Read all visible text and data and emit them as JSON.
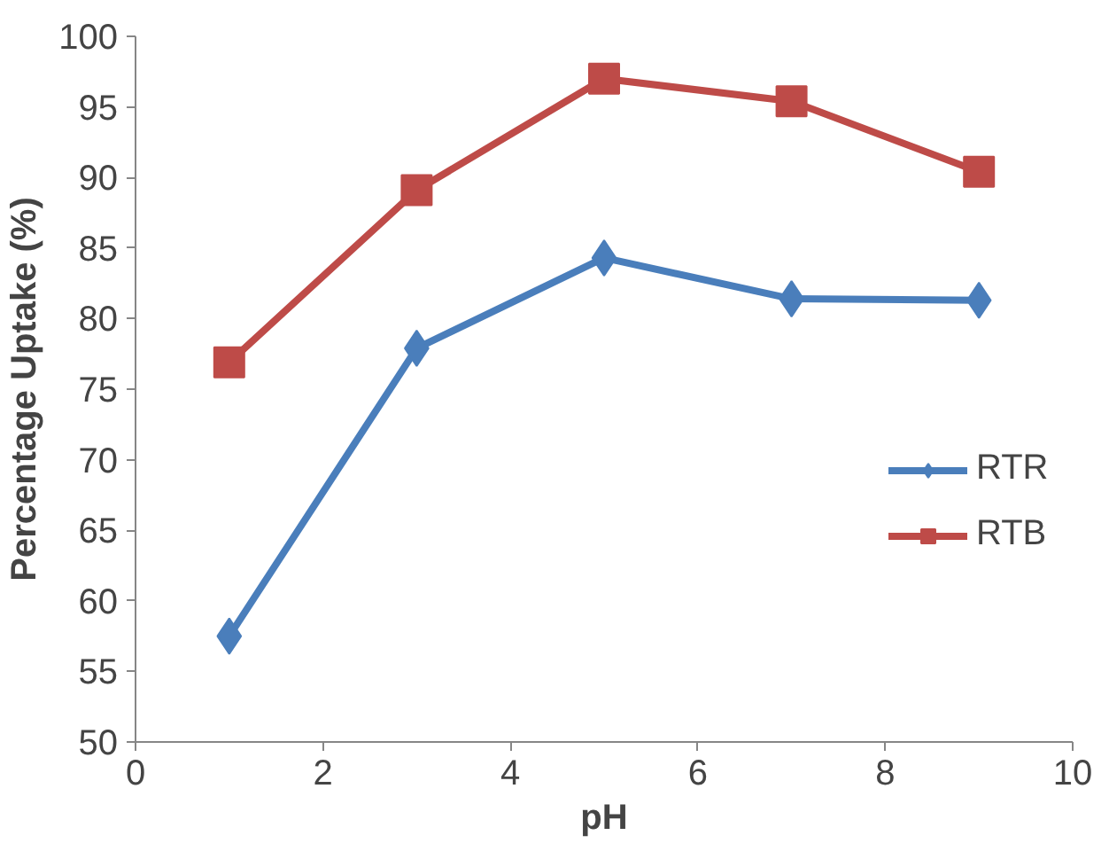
{
  "chart_data": {
    "type": "line",
    "xlabel": "pH",
    "ylabel": "Percentage Uptake (%)",
    "x": [
      1,
      3,
      5,
      7,
      9
    ],
    "series": [
      {
        "name": "RTR",
        "color": "#4a7ebb",
        "marker": "diamond",
        "values": [
          57.5,
          77.9,
          84.3,
          81.4,
          81.3
        ]
      },
      {
        "name": "RTB",
        "color": "#be4b48",
        "marker": "square",
        "values": [
          76.9,
          89.1,
          97.0,
          95.4,
          90.4
        ]
      }
    ],
    "xlim": [
      0,
      10
    ],
    "xticks": [
      0,
      2,
      4,
      6,
      8,
      10
    ],
    "ylim": [
      50,
      100
    ],
    "yticks": [
      50,
      55,
      60,
      65,
      70,
      75,
      80,
      85,
      90,
      95,
      100
    ],
    "grid": false,
    "legend": "right",
    "line_style": "solid"
  }
}
